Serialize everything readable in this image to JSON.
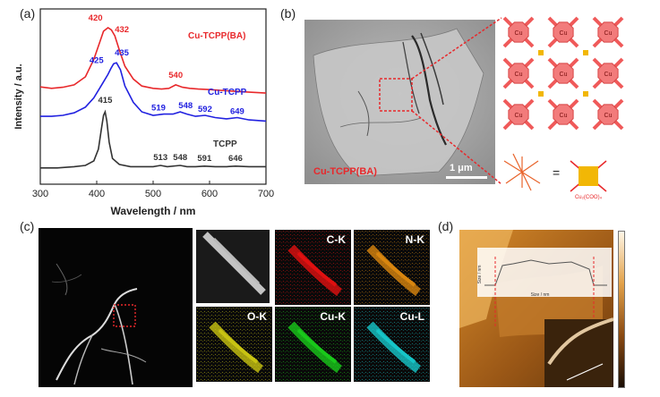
{
  "panels": {
    "a": "(a)",
    "b": "(b)",
    "c": "(c)",
    "d": "(d)"
  },
  "chart_data": {
    "type": "line",
    "xlabel": "Wavelength / nm",
    "ylabel": "Intensity / a.u.",
    "xlim": [
      300,
      700
    ],
    "xticks": [
      300,
      400,
      500,
      600,
      700
    ],
    "series": [
      {
        "name": "Cu-TCPP(BA)",
        "color": "#e8282b",
        "x": [
          300,
          320,
          340,
          360,
          380,
          395,
          405,
          412,
          420,
          426,
          432,
          440,
          450,
          465,
          480,
          500,
          515,
          528,
          540,
          552,
          565,
          580,
          600,
          630,
          660,
          700
        ],
        "y": [
          0.555,
          0.547,
          0.553,
          0.567,
          0.613,
          0.713,
          0.807,
          0.873,
          0.893,
          0.88,
          0.847,
          0.767,
          0.673,
          0.6,
          0.56,
          0.547,
          0.543,
          0.547,
          0.567,
          0.553,
          0.547,
          0.543,
          0.54,
          0.533,
          0.527,
          0.52
        ],
        "peak_labels": [
          "420",
          "432",
          "540"
        ]
      },
      {
        "name": "Cu-TCPP",
        "color": "#2121e0",
        "x": [
          300,
          320,
          340,
          360,
          380,
          395,
          410,
          420,
          425,
          430,
          435,
          442,
          450,
          465,
          480,
          500,
          519,
          535,
          548,
          560,
          575,
          592,
          610,
          630,
          649,
          670,
          700
        ],
        "y": [
          0.387,
          0.387,
          0.393,
          0.407,
          0.44,
          0.493,
          0.573,
          0.627,
          0.66,
          0.687,
          0.693,
          0.653,
          0.56,
          0.467,
          0.413,
          0.393,
          0.4,
          0.4,
          0.413,
          0.4,
          0.387,
          0.393,
          0.38,
          0.373,
          0.38,
          0.367,
          0.36
        ],
        "peak_labels": [
          "425",
          "435",
          "519",
          "548",
          "592",
          "649"
        ]
      },
      {
        "name": "TCPP",
        "color": "#333333",
        "x": [
          300,
          330,
          360,
          380,
          395,
          403,
          408,
          412,
          415,
          418,
          422,
          428,
          440,
          460,
          480,
          500,
          513,
          525,
          548,
          560,
          575,
          591,
          610,
          630,
          646,
          670,
          700
        ],
        "y": [
          0.093,
          0.093,
          0.1,
          0.107,
          0.133,
          0.2,
          0.307,
          0.393,
          0.413,
          0.36,
          0.24,
          0.147,
          0.113,
          0.1,
          0.1,
          0.1,
          0.107,
          0.1,
          0.107,
          0.1,
          0.1,
          0.103,
          0.1,
          0.1,
          0.103,
          0.1,
          0.1
        ],
        "peak_labels": [
          "415",
          "513",
          "548",
          "591",
          "646"
        ]
      }
    ]
  },
  "image_b": {
    "sample_label": "Cu-TCPP(BA)",
    "scale_bar": "1 μm",
    "node_label": "Cu",
    "paddlewheel_label": "Cu₂(COO)₄"
  },
  "image_c": {
    "maps": [
      {
        "label": "C-K",
        "color": "#e01010"
      },
      {
        "label": "N-K",
        "color": "#d9860f"
      },
      {
        "label": "O-K",
        "color": "#c8c312"
      },
      {
        "label": "Cu-K",
        "color": "#19c81a"
      },
      {
        "label": "Cu-L",
        "color": "#16c5c8"
      }
    ]
  },
  "image_d": {
    "inset_xlabel": "Size / nm",
    "inset_ylabel": "Size / nm"
  }
}
